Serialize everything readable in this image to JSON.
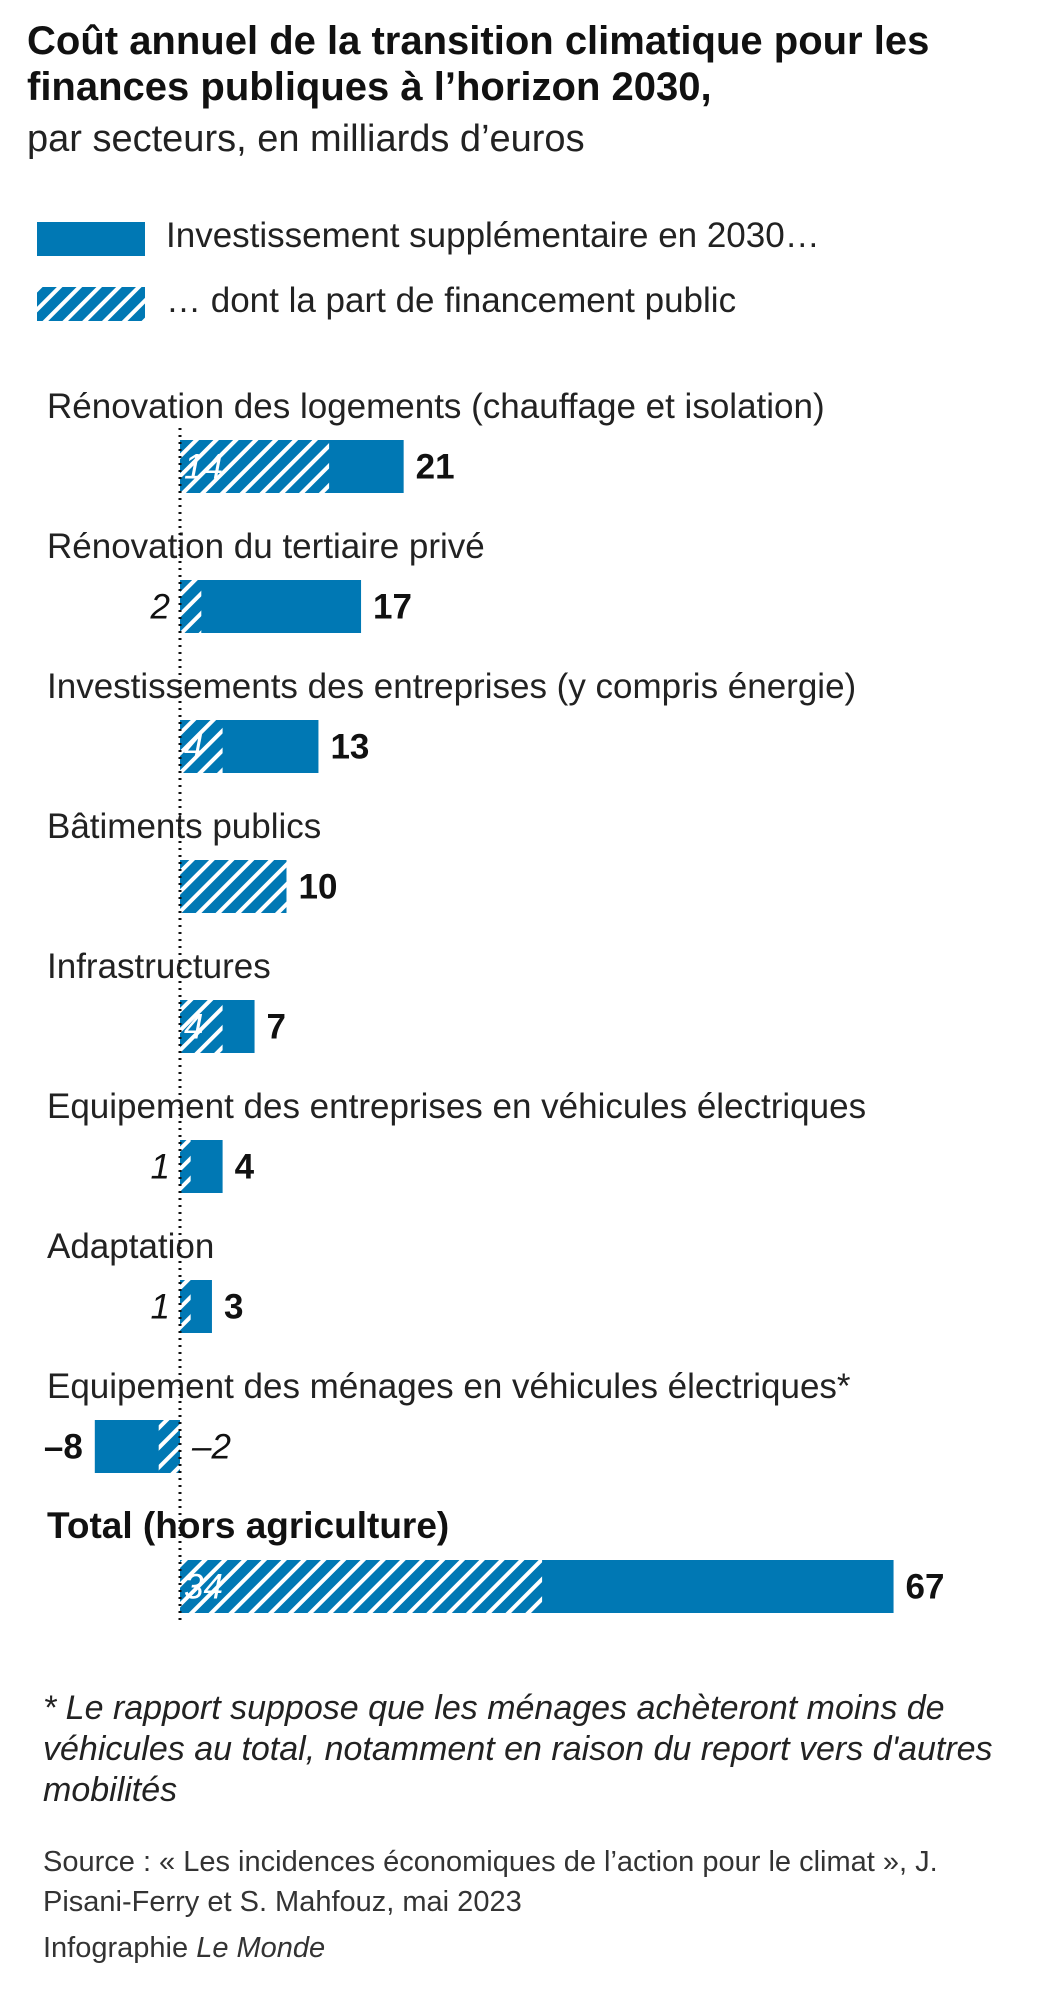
{
  "title": "Coût annuel de la transition climatique pour les finances publiques à l’horizon 2030,",
  "subtitle": "par secteurs, en milliards d’euros",
  "legend": {
    "total_label": "Investissement supplémentaire en 2030…",
    "public_label": "… dont la part de financement public"
  },
  "colors": {
    "bar": "#0078b4",
    "hatch_stripe": "#ffffff",
    "text": "#1a1a1a"
  },
  "chart_data": {
    "type": "bar",
    "orientation": "horizontal",
    "unit": "milliards d’euros",
    "categories": [
      "Rénovation des logements (chauffage et isolation)",
      "Rénovation du tertiaire privé",
      "Investissements des entreprises (y compris énergie)",
      "Bâtiments publics",
      "Infrastructures",
      "Equipement des entreprises en véhicules électriques",
      "Adaptation",
      "Equipement des ménages en véhicules électriques*",
      "Total (hors agriculture)"
    ],
    "series": [
      {
        "name": "Investissement supplémentaire en 2030…",
        "values": [
          21,
          17,
          13,
          10,
          7,
          4,
          3,
          -8,
          67
        ]
      },
      {
        "name": "… dont la part de financement public",
        "values": [
          14,
          2,
          4,
          10,
          4,
          1,
          1,
          -2,
          34
        ]
      }
    ],
    "total_labels": [
      "21",
      "17",
      "13",
      "10",
      "7",
      "4",
      "3",
      "–8",
      "67"
    ],
    "public_labels": [
      "14",
      "2",
      "4",
      "",
      "4",
      "1",
      "1",
      "–2",
      "34"
    ],
    "highlight_last": true
  },
  "footnote": "* Le rapport suppose que les ménages achèteront moins de véhicules au total, notamment en raison du report vers d'autres mobilités",
  "source": "Source : « Les incidences économiques de l’action pour le climat », J. Pisani-Ferry et S. Mahfouz, mai 2023",
  "credit": {
    "prefix": "Infographie",
    "brand": "Le Monde"
  }
}
